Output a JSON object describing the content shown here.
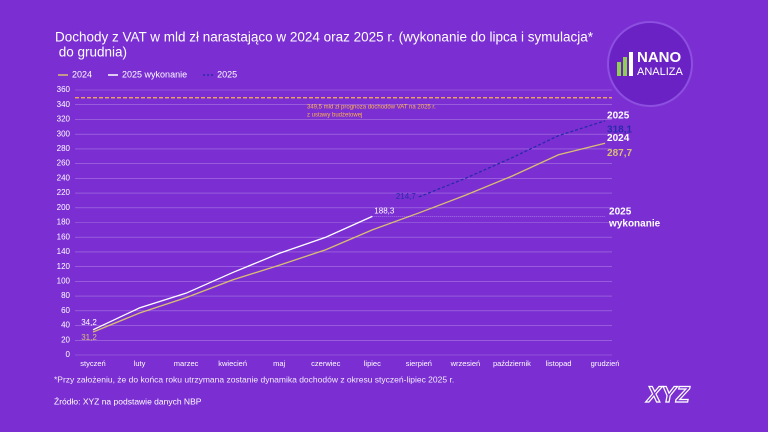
{
  "chart_data": {
    "type": "line",
    "title_lines": [
      "Dochody z VAT w mld zł narastająco w 2024 oraz 2025 r. (wykonanie do lipca i symulacja*",
      " do grudnia)"
    ],
    "categories": [
      "styczeń",
      "luty",
      "marzec",
      "kwiecień",
      "maj",
      "czerwiec",
      "lipiec",
      "sierpień",
      "wrzesień",
      "październik",
      "listopad",
      "grudzień"
    ],
    "series": [
      {
        "name": "2024",
        "color": "#d9bf72",
        "style": "solid",
        "values": [
          31.2,
          57,
          78,
          102,
          122,
          143,
          170,
          193,
          217,
          243,
          272,
          287.7
        ],
        "value_labels": [
          "31,2",
          null,
          null,
          null,
          null,
          null,
          null,
          null,
          null,
          null,
          null,
          "287,7"
        ]
      },
      {
        "name": "2025 wykonanie",
        "color": "#ffffff",
        "style": "solid",
        "values": [
          34.2,
          64,
          84,
          112,
          138,
          160,
          188.3,
          null,
          null,
          null,
          null,
          null
        ],
        "value_labels": [
          "34,2",
          null,
          null,
          null,
          null,
          null,
          "188,3",
          null,
          null,
          null,
          null,
          null
        ]
      },
      {
        "name": "2025",
        "color": "#2b2aa8",
        "style": "dashed",
        "values": [
          null,
          null,
          null,
          null,
          null,
          null,
          null,
          214.7,
          240,
          268,
          298,
          318.1
        ],
        "value_labels": [
          null,
          null,
          null,
          null,
          null,
          null,
          null,
          "214,7",
          null,
          null,
          null,
          "318,1"
        ]
      }
    ],
    "ylim": [
      0,
      360
    ],
    "yticks": [
      0,
      20,
      40,
      60,
      80,
      100,
      120,
      140,
      160,
      180,
      200,
      220,
      240,
      260,
      280,
      300,
      320,
      340,
      360
    ],
    "grid": true,
    "reference_line": {
      "value": 349.5,
      "color": "#ffb347",
      "lines": [
        "349,5 mld zł prognoza dochodów VAT na 2025 r.",
        "z ustawy budżetowej"
      ]
    },
    "footnote": "*Przy założeniu, że do końca roku utrzymana zostanie dynamika dochodów z okresu styczeń-lipiec 2025 r.",
    "source": "Źródło: XYZ na podstawie danych NBP",
    "logo": {
      "top": "NANO",
      "bottom": "ANALIZA"
    },
    "brand": "XYZ"
  }
}
